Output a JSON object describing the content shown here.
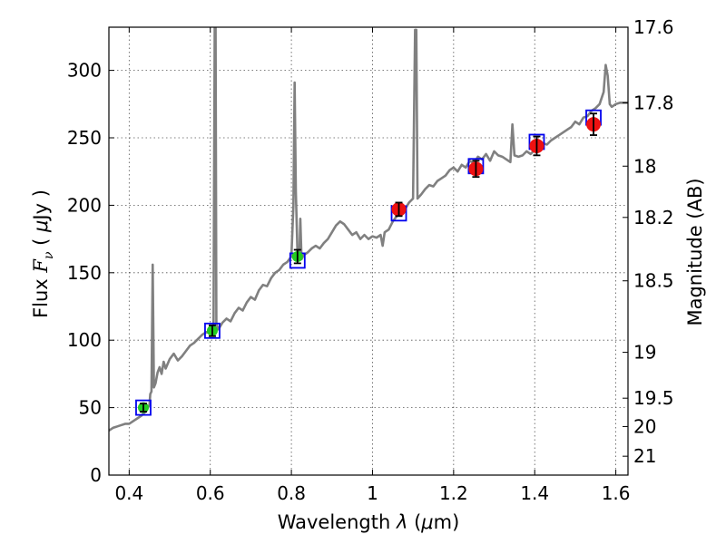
{
  "chart_data": {
    "type": "scatter",
    "title": "",
    "xlabel_prefix": "Wavelength  ",
    "xlabel_lambda": "λ",
    "xlabel_unit_open": " (",
    "xlabel_mu": "μ",
    "xlabel_unit_close": "m)",
    "ylabel_prefix": "Flux  ",
    "ylabel_symbol_f": "F",
    "ylabel_symbol_nu": "ν",
    "ylabel_unit_open": "  (  ",
    "ylabel_mu": "μ",
    "ylabel_unit_close": "Jy )",
    "y2label": "Magnitude (AB)",
    "xlim": [
      0.35,
      1.63
    ],
    "ylim": [
      0,
      332
    ],
    "grid": true,
    "x_ticks": [
      0.4,
      0.6,
      0.8,
      1.0,
      1.2,
      1.4,
      1.6
    ],
    "x_tick_labels": [
      "0.4",
      "0.6",
      "0.8",
      "1",
      "1.2",
      "1.4",
      "1.6"
    ],
    "y_ticks": [
      0,
      50,
      100,
      150,
      200,
      250,
      300
    ],
    "y_tick_labels": [
      "0",
      "50",
      "100",
      "150",
      "200",
      "250",
      "300"
    ],
    "y2_ticks": [
      {
        "flux": 332,
        "label": "17.6"
      },
      {
        "flux": 276,
        "label": "17.8"
      },
      {
        "flux": 229,
        "label": "18"
      },
      {
        "flux": 191,
        "label": "18.2"
      },
      {
        "flux": 144,
        "label": "18.5"
      },
      {
        "flux": 91,
        "label": "19"
      },
      {
        "flux": 57,
        "label": "19.5"
      },
      {
        "flux": 36,
        "label": "20"
      },
      {
        "flux": 14,
        "label": "21"
      }
    ],
    "colors": {
      "model": "#808080",
      "optical": "#22cc22",
      "nir": "#ee1111",
      "box": "#0000ee",
      "error": "#000000",
      "grid": "#555555"
    },
    "series": [
      {
        "kind": "model",
        "points": [
          [
            0.35,
            33
          ],
          [
            0.36,
            35
          ],
          [
            0.37,
            36
          ],
          [
            0.38,
            37
          ],
          [
            0.39,
            38
          ],
          [
            0.4,
            38
          ],
          [
            0.41,
            40
          ],
          [
            0.42,
            42
          ],
          [
            0.43,
            44
          ],
          [
            0.44,
            47
          ],
          [
            0.45,
            52
          ],
          [
            0.452,
            60
          ],
          [
            0.455,
            62
          ],
          [
            0.458,
            156
          ],
          [
            0.461,
            65
          ],
          [
            0.465,
            68
          ],
          [
            0.47,
            76
          ],
          [
            0.475,
            80
          ],
          [
            0.48,
            75
          ],
          [
            0.485,
            84
          ],
          [
            0.49,
            79
          ],
          [
            0.5,
            86
          ],
          [
            0.51,
            90
          ],
          [
            0.52,
            85
          ],
          [
            0.53,
            88
          ],
          [
            0.54,
            92
          ],
          [
            0.55,
            96
          ],
          [
            0.56,
            98
          ],
          [
            0.57,
            101
          ],
          [
            0.58,
            104
          ],
          [
            0.59,
            106
          ],
          [
            0.6,
            105
          ],
          [
            0.605,
            108
          ],
          [
            0.608,
            110
          ],
          [
            0.611,
            338
          ],
          [
            0.613,
            338
          ],
          [
            0.615,
            112
          ],
          [
            0.62,
            108
          ],
          [
            0.63,
            113
          ],
          [
            0.64,
            116
          ],
          [
            0.65,
            114
          ],
          [
            0.66,
            120
          ],
          [
            0.67,
            124
          ],
          [
            0.68,
            122
          ],
          [
            0.69,
            128
          ],
          [
            0.7,
            132
          ],
          [
            0.71,
            130
          ],
          [
            0.72,
            137
          ],
          [
            0.73,
            141
          ],
          [
            0.74,
            140
          ],
          [
            0.75,
            146
          ],
          [
            0.76,
            150
          ],
          [
            0.77,
            152
          ],
          [
            0.78,
            156
          ],
          [
            0.79,
            158
          ],
          [
            0.8,
            162
          ],
          [
            0.805,
            200
          ],
          [
            0.808,
            291
          ],
          [
            0.811,
            210
          ],
          [
            0.815,
            165
          ],
          [
            0.82,
            162
          ],
          [
            0.822,
            190
          ],
          [
            0.825,
            160
          ],
          [
            0.83,
            163
          ],
          [
            0.84,
            165
          ],
          [
            0.85,
            168
          ],
          [
            0.86,
            170
          ],
          [
            0.87,
            168
          ],
          [
            0.88,
            172
          ],
          [
            0.89,
            175
          ],
          [
            0.9,
            180
          ],
          [
            0.91,
            185
          ],
          [
            0.92,
            188
          ],
          [
            0.93,
            186
          ],
          [
            0.94,
            182
          ],
          [
            0.95,
            178
          ],
          [
            0.96,
            180
          ],
          [
            0.97,
            175
          ],
          [
            0.98,
            178
          ],
          [
            0.99,
            175
          ],
          [
            1.0,
            177
          ],
          [
            1.01,
            176
          ],
          [
            1.02,
            178
          ],
          [
            1.025,
            170
          ],
          [
            1.03,
            180
          ],
          [
            1.04,
            182
          ],
          [
            1.05,
            188
          ],
          [
            1.06,
            192
          ],
          [
            1.07,
            195
          ],
          [
            1.08,
            197
          ],
          [
            1.09,
            202
          ],
          [
            1.1,
            205
          ],
          [
            1.105,
            330
          ],
          [
            1.108,
            330
          ],
          [
            1.111,
            205
          ],
          [
            1.12,
            208
          ],
          [
            1.13,
            212
          ],
          [
            1.14,
            215
          ],
          [
            1.15,
            214
          ],
          [
            1.16,
            218
          ],
          [
            1.17,
            220
          ],
          [
            1.18,
            222
          ],
          [
            1.19,
            226
          ],
          [
            1.2,
            228
          ],
          [
            1.21,
            225
          ],
          [
            1.22,
            230
          ],
          [
            1.23,
            228
          ],
          [
            1.24,
            233
          ],
          [
            1.25,
            231
          ],
          [
            1.26,
            236
          ],
          [
            1.27,
            234
          ],
          [
            1.28,
            238
          ],
          [
            1.29,
            233
          ],
          [
            1.3,
            240
          ],
          [
            1.31,
            237
          ],
          [
            1.32,
            236
          ],
          [
            1.33,
            234
          ],
          [
            1.34,
            232
          ],
          [
            1.345,
            260
          ],
          [
            1.35,
            237
          ],
          [
            1.36,
            236
          ],
          [
            1.37,
            237
          ],
          [
            1.38,
            240
          ],
          [
            1.39,
            238
          ],
          [
            1.4,
            241
          ],
          [
            1.41,
            244
          ],
          [
            1.42,
            246
          ],
          [
            1.43,
            245
          ],
          [
            1.44,
            248
          ],
          [
            1.45,
            250
          ],
          [
            1.46,
            252
          ],
          [
            1.47,
            254
          ],
          [
            1.48,
            256
          ],
          [
            1.49,
            258
          ],
          [
            1.5,
            262
          ],
          [
            1.51,
            260
          ],
          [
            1.52,
            265
          ],
          [
            1.53,
            266
          ],
          [
            1.54,
            270
          ],
          [
            1.55,
            272
          ],
          [
            1.56,
            275
          ],
          [
            1.57,
            284
          ],
          [
            1.575,
            304
          ],
          [
            1.58,
            296
          ],
          [
            1.585,
            275
          ],
          [
            1.59,
            273
          ],
          [
            1.6,
            275
          ],
          [
            1.61,
            276
          ],
          [
            1.62,
            276
          ],
          [
            1.63,
            276
          ]
        ]
      },
      {
        "kind": "photometry",
        "points": [
          {
            "x": 0.435,
            "y": 50,
            "err": 3,
            "color": "green",
            "model": 50
          },
          {
            "x": 0.605,
            "y": 107,
            "err": 4,
            "color": "green",
            "model": 107
          },
          {
            "x": 0.815,
            "y": 162,
            "err": 5,
            "color": "green",
            "model": 159
          },
          {
            "x": 1.065,
            "y": 197,
            "err": 5,
            "color": "red",
            "model": 194
          },
          {
            "x": 1.255,
            "y": 227,
            "err": 6,
            "color": "red",
            "model": 229
          },
          {
            "x": 1.405,
            "y": 244,
            "err": 7,
            "color": "red",
            "model": 247
          },
          {
            "x": 1.545,
            "y": 260,
            "err": 8,
            "color": "red",
            "model": 265
          }
        ]
      }
    ]
  }
}
